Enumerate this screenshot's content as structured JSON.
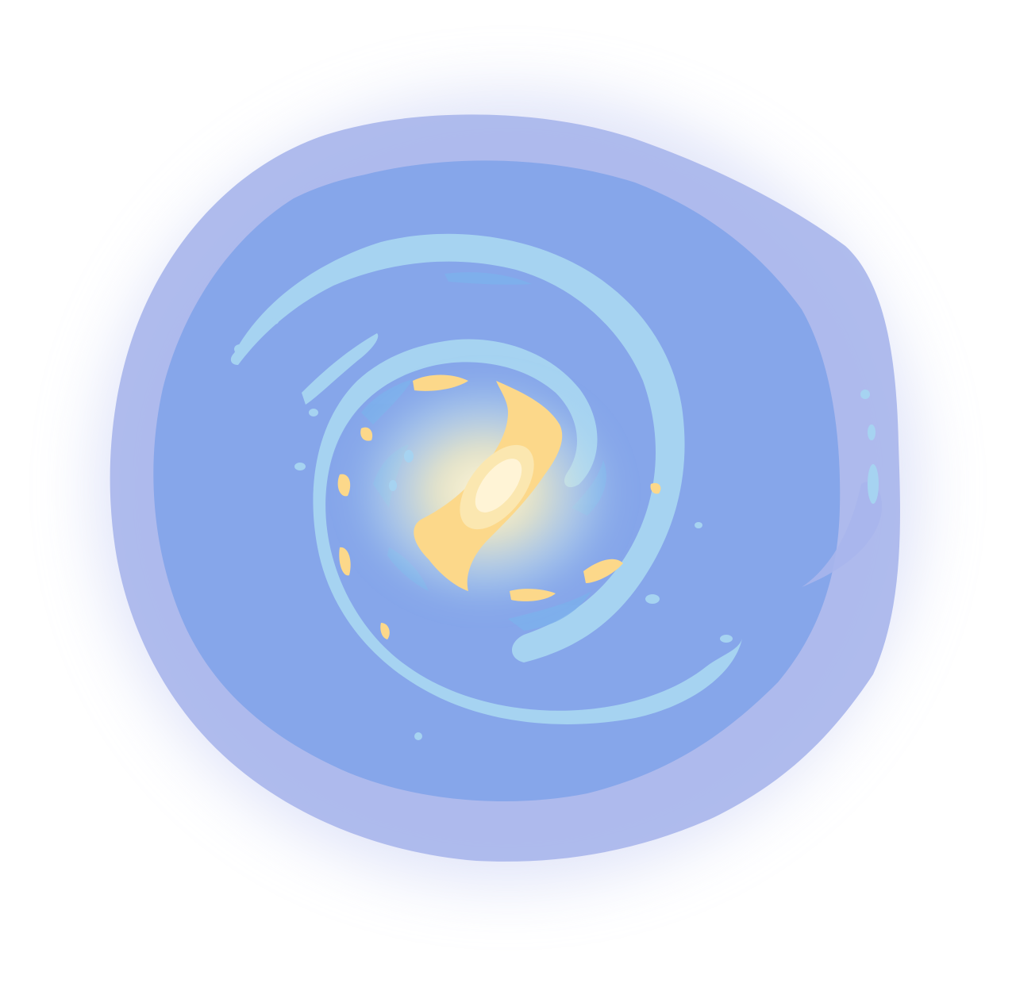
{
  "image": {
    "subject": "spiral-galaxy",
    "background": "#ffffff"
  },
  "palette": {
    "halo": "#b8c2ee",
    "outer_disk": "#a9b6ec",
    "disk": "#86a6ea",
    "arm": "#a6d3f1",
    "arm_dark": "#7cb0ec",
    "dust": "#c0d8f4",
    "bar": "#fcd88a",
    "bar_light": "#fbe7b0",
    "core": "#fff4d6"
  }
}
